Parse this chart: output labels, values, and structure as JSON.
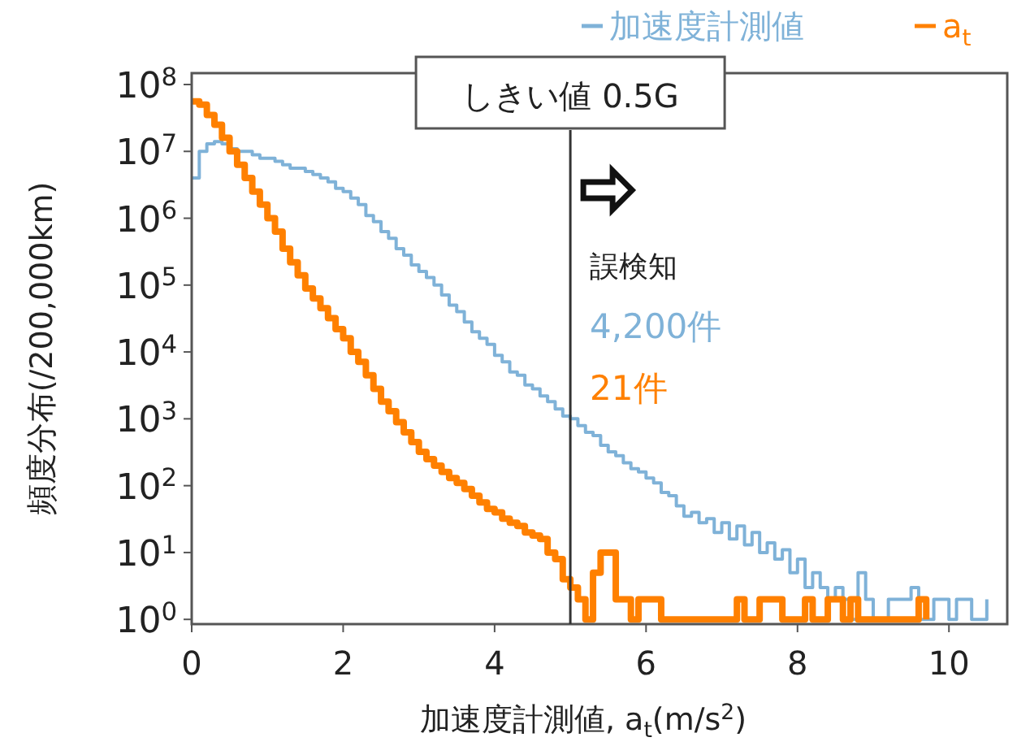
{
  "chart_data": {
    "type": "step",
    "xlabel": "加速度計測値, a$_{t}$(m/s$^{2}$)",
    "ylabel": "頻度分布(/200,000km)",
    "log": "y",
    "legend": "top right",
    "grid": false,
    "xlim": [
      0,
      10.77
    ],
    "xticks": [
      0,
      2,
      4,
      6,
      8,
      10
    ],
    "ylim": [
      0.85,
      148000000
    ],
    "yticks": [
      {
        "value": 1,
        "label": "10$^{0}$"
      },
      {
        "value": 10,
        "label": "10$^{1}$"
      },
      {
        "value": 100,
        "label": "10$^{2}$"
      },
      {
        "value": 1000,
        "label": "10$^{3}$"
      },
      {
        "value": 10000,
        "label": "10$^{4}$"
      },
      {
        "value": 100000,
        "label": "10$^{5}$"
      },
      {
        "value": 1000000,
        "label": "10$^{6}$"
      },
      {
        "value": 10000000,
        "label": "10$^{7}$"
      },
      {
        "value": 100000000,
        "label": "10$^{8}$"
      }
    ],
    "ref_lines": [
      {
        "axis": "x",
        "value": 5,
        "label": "しきい値 0.5G",
        "color": "#333333"
      }
    ],
    "annotations": [
      "誤検知",
      "4,200件",
      "21件"
    ],
    "series": [
      {
        "name": "加速度計測値",
        "color": "#7fb2d8",
        "x": [
          0,
          0.1,
          0.2,
          0.3,
          0.4,
          0.5,
          0.6,
          0.7,
          0.8,
          0.9,
          1.0,
          1.1,
          1.2,
          1.3,
          1.4,
          1.5,
          1.6,
          1.7,
          1.8,
          1.9,
          2.0,
          2.1,
          2.2,
          2.3,
          2.4,
          2.5,
          2.6,
          2.7,
          2.8,
          2.9,
          3.0,
          3.1,
          3.2,
          3.3,
          3.4,
          3.5,
          3.6,
          3.7,
          3.8,
          3.9,
          4.0,
          4.1,
          4.2,
          4.3,
          4.4,
          4.5,
          4.6,
          4.7,
          4.8,
          4.9,
          5.0,
          5.1,
          5.2,
          5.3,
          5.4,
          5.5,
          5.6,
          5.7,
          5.8,
          5.9,
          6.0,
          6.1,
          6.2,
          6.3,
          6.4,
          6.5,
          6.6,
          6.7,
          6.8,
          6.9,
          7.0,
          7.1,
          7.2,
          7.3,
          7.4,
          7.5,
          7.6,
          7.7,
          7.8,
          7.9,
          8.0,
          8.1,
          8.2,
          8.3,
          8.4,
          8.5,
          8.6,
          8.7,
          8.8,
          8.9,
          9.0,
          9.1,
          9.2,
          9.3,
          9.4,
          9.5,
          9.6,
          9.7,
          9.8,
          9.9,
          10.0,
          10.1,
          10.2,
          10.3,
          10.4,
          10.5
        ],
        "values": [
          4000000,
          10000000,
          13000000,
          14000000,
          13000000,
          11000000,
          10000000,
          10000000,
          8900000,
          7900000,
          7900000,
          7100000,
          6300000,
          5600000,
          5600000,
          5000000,
          4500000,
          4000000,
          3500000,
          2800000,
          2500000,
          2000000,
          1600000,
          1100000,
          890000,
          630000,
          500000,
          350000,
          280000,
          200000,
          160000,
          130000,
          100000,
          71000,
          50000,
          40000,
          28000,
          20000,
          16000,
          13000,
          8900,
          7100,
          5000,
          4500,
          3200,
          2800,
          2200,
          1800,
          1400,
          1100,
          1000,
          790,
          630,
          560,
          400,
          320,
          280,
          220,
          180,
          160,
          130,
          110,
          79,
          71,
          50,
          35,
          40,
          28,
          32,
          20,
          28,
          16,
          25,
          13,
          20,
          10,
          14,
          8,
          11,
          5,
          8,
          3,
          5,
          3,
          2,
          3,
          2,
          1,
          5,
          2,
          1,
          1,
          2,
          2,
          2,
          3,
          1,
          1,
          2,
          2,
          1,
          2,
          2,
          1,
          1,
          2
        ]
      },
      {
        "name": "a$_{t}$",
        "color": "#ff8000",
        "x": [
          0,
          0.1,
          0.2,
          0.3,
          0.4,
          0.5,
          0.6,
          0.7,
          0.8,
          0.9,
          1.0,
          1.1,
          1.2,
          1.3,
          1.4,
          1.5,
          1.6,
          1.7,
          1.8,
          1.9,
          2.0,
          2.1,
          2.2,
          2.3,
          2.4,
          2.5,
          2.6,
          2.7,
          2.8,
          2.9,
          3.0,
          3.1,
          3.2,
          3.3,
          3.4,
          3.5,
          3.6,
          3.7,
          3.8,
          3.9,
          4.0,
          4.1,
          4.2,
          4.3,
          4.4,
          4.5,
          4.6,
          4.7,
          4.8,
          4.9,
          5.0,
          5.1,
          5.2,
          5.3,
          5.4,
          5.5,
          5.6,
          5.7,
          5.8,
          5.9,
          6.0,
          6.1,
          6.2,
          6.3,
          6.4,
          6.5,
          6.6,
          6.7,
          6.8,
          6.9,
          7.0,
          7.1,
          7.2,
          7.3,
          7.4,
          7.5,
          7.6,
          7.7,
          7.8,
          7.9,
          8.0,
          8.1,
          8.2,
          8.3,
          8.4,
          8.5,
          8.6,
          8.7,
          8.8,
          8.9,
          9.0,
          9.1,
          9.2,
          9.3,
          9.4,
          9.5,
          9.6,
          9.7
        ],
        "values": [
          56000000,
          50000000,
          35000000,
          25000000,
          16000000,
          10000000,
          6300000,
          4000000,
          2500000,
          1600000,
          1000000,
          630000,
          350000,
          220000,
          140000,
          89000,
          63000,
          45000,
          32000,
          22000,
          16000,
          10000,
          7100,
          4500,
          2800,
          1800,
          1300,
          890,
          630,
          450,
          320,
          250,
          200,
          160,
          130,
          110,
          89,
          71,
          56,
          45,
          40,
          32,
          28,
          25,
          20,
          18,
          16,
          10,
          8,
          4,
          3,
          2,
          1,
          5,
          10,
          10,
          2,
          2,
          1,
          2,
          2,
          2,
          1,
          1,
          1,
          1,
          1,
          1,
          1,
          1,
          1,
          1,
          2,
          1,
          1,
          2,
          2,
          2,
          1,
          1,
          1,
          2,
          1,
          1,
          2,
          2,
          1,
          2,
          1,
          1,
          1,
          1,
          1,
          1,
          1,
          1,
          2,
          1
        ]
      }
    ]
  }
}
